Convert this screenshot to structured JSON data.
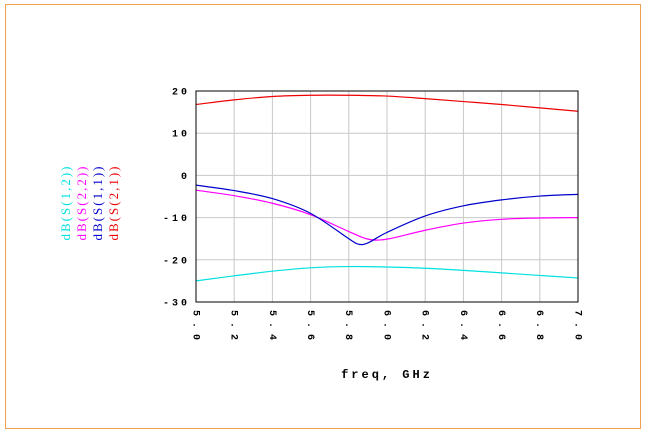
{
  "chart_data": {
    "type": "line",
    "title": "",
    "xlabel": "freq, GHz",
    "ylabel": "",
    "xlim": [
      5.0,
      7.0
    ],
    "ylim": [
      -30,
      20
    ],
    "grid": true,
    "x_ticks": [
      "5.0",
      "5.2",
      "5.4",
      "5.6",
      "5.8",
      "6.0",
      "6.2",
      "6.4",
      "6.6",
      "6.8",
      "7.0"
    ],
    "y_ticks": [
      "20",
      "10",
      "0",
      "-10",
      "-20",
      "-30"
    ],
    "legend_position": "left-vertical",
    "series": [
      {
        "name": "dB(S(1,2))",
        "color": "#00e0e0",
        "x": [
          5.0,
          5.2,
          5.4,
          5.6,
          5.8,
          6.0,
          6.2,
          6.4,
          6.6,
          6.8,
          7.0
        ],
        "y": [
          -25.0,
          -23.8,
          -22.7,
          -21.9,
          -21.6,
          -21.7,
          -22.0,
          -22.5,
          -23.1,
          -23.7,
          -24.3
        ]
      },
      {
        "name": "dB(S(2,2))",
        "color": "#ff00ff",
        "x": [
          5.0,
          5.2,
          5.4,
          5.6,
          5.8,
          5.9,
          6.0,
          6.2,
          6.4,
          6.6,
          6.8,
          7.0
        ],
        "y": [
          -3.5,
          -4.8,
          -6.6,
          -9.3,
          -13.3,
          -15.1,
          -15.1,
          -13.0,
          -11.3,
          -10.4,
          -10.1,
          -10.0
        ]
      },
      {
        "name": "dB(S(1,1))",
        "color": "#0000cc",
        "x": [
          5.0,
          5.2,
          5.4,
          5.6,
          5.8,
          5.85,
          5.9,
          6.0,
          6.2,
          6.4,
          6.6,
          6.8,
          7.0
        ],
        "y": [
          -2.3,
          -3.6,
          -5.5,
          -9.0,
          -15.0,
          -16.3,
          -16.0,
          -13.5,
          -9.6,
          -7.2,
          -5.8,
          -4.9,
          -4.5
        ]
      },
      {
        "name": "dB(S(2,1))",
        "color": "#ee0000",
        "x": [
          5.0,
          5.2,
          5.4,
          5.6,
          5.8,
          6.0,
          6.2,
          6.4,
          6.6,
          6.8,
          7.0
        ],
        "y": [
          16.8,
          17.9,
          18.7,
          19.0,
          19.0,
          18.8,
          18.2,
          17.5,
          16.8,
          16.0,
          15.2
        ]
      }
    ]
  }
}
